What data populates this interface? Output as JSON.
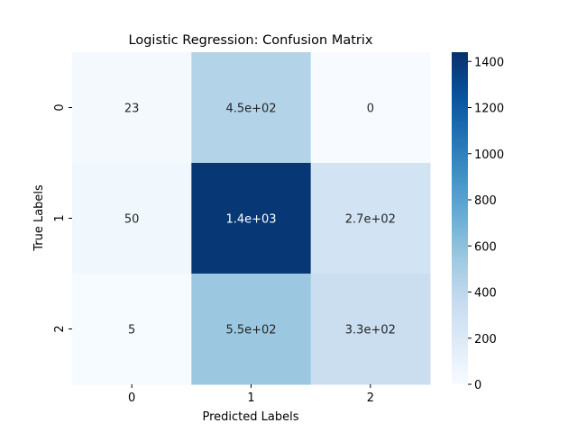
{
  "chart_data": {
    "type": "heatmap",
    "title": "Logistic Regression: Confusion Matrix",
    "xlabel": "Predicted Labels",
    "ylabel": "True Labels",
    "x_categories": [
      "0",
      "1",
      "2"
    ],
    "y_categories": [
      "0",
      "1",
      "2"
    ],
    "values": [
      [
        23,
        450,
        0
      ],
      [
        50,
        1400,
        270
      ],
      [
        5,
        550,
        330
      ]
    ],
    "annotations": [
      [
        "23",
        "4.5e+02",
        "0"
      ],
      [
        "50",
        "1.4e+03",
        "2.7e+02"
      ],
      [
        "5",
        "5.5e+02",
        "3.3e+02"
      ]
    ],
    "colormap": "Blues",
    "colorbar": {
      "range": [
        0,
        1440
      ],
      "ticks": [
        0,
        200,
        400,
        600,
        800,
        1000,
        1200,
        1400
      ],
      "tick_labels": [
        "0",
        "200",
        "400",
        "600",
        "800",
        "1000",
        "1200",
        "1400"
      ]
    }
  }
}
